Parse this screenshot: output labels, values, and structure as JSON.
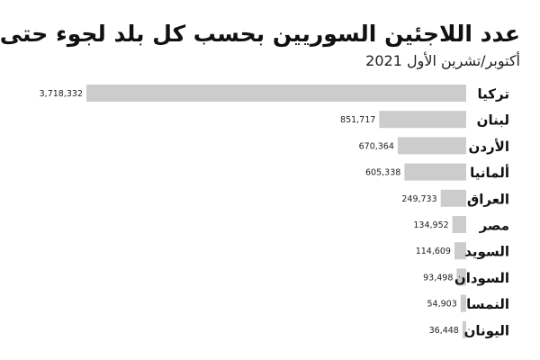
{
  "chart_data": {
    "type": "bar",
    "orientation": "horizontal",
    "title": "عدد اللاجئين السوريين بحسب كل بلد لجوء حتى",
    "subtitle": "أكتوبر/تشرين الأول 2021",
    "categories": [
      "تركيا",
      "لبنان",
      "الأردن",
      "ألمانيا",
      "العراق",
      "مصر",
      "السويد",
      "السودان",
      "النمسا",
      "اليونان"
    ],
    "values": [
      3718332,
      851717,
      670364,
      605338,
      249733,
      134952,
      114609,
      93498,
      54903,
      36448
    ],
    "value_labels": [
      "3,718,332",
      "851,717",
      "670,364",
      "605,338",
      "249,733",
      "134,952",
      "114,609",
      "93,498",
      "54,903",
      "36,448"
    ],
    "xlim": [
      0,
      3718332
    ],
    "bar_color": "#cccccc",
    "grid": false,
    "legend": "none"
  }
}
